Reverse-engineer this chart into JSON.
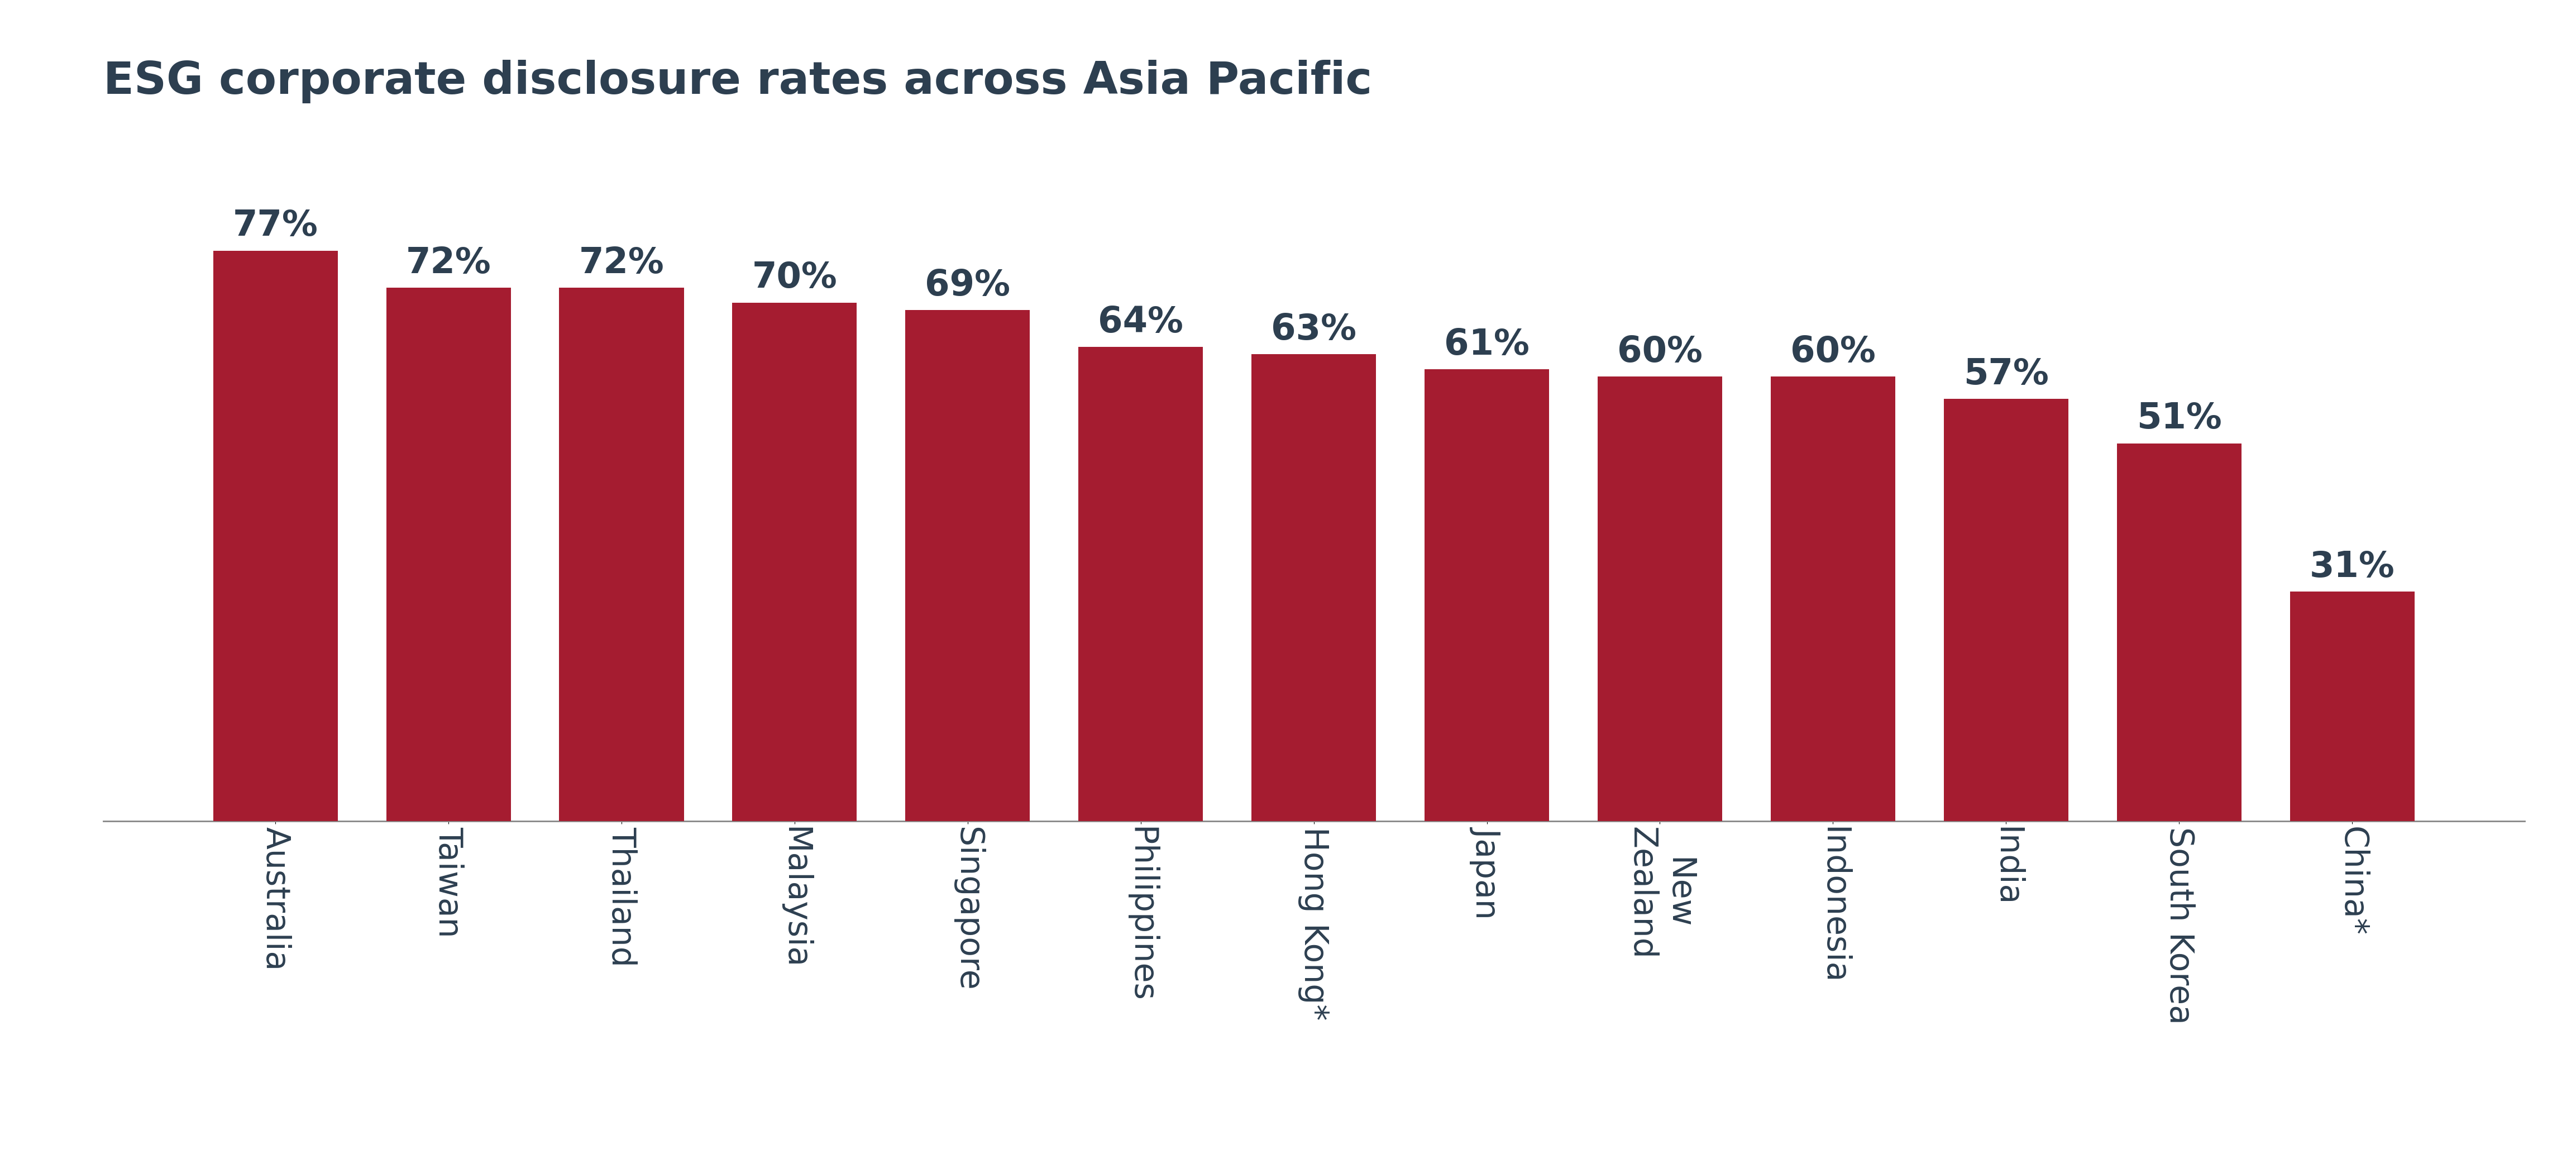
{
  "title": "ESG corporate disclosure rates across Asia Pacific",
  "categories": [
    "Australia",
    "Taiwan",
    "Thailand",
    "Malaysia",
    "Singapore",
    "Philippines",
    "Hong Kong*",
    "Japan",
    "New\nZealand",
    "Indonesia",
    "India",
    "South Korea",
    "China*"
  ],
  "values": [
    77,
    72,
    72,
    70,
    69,
    64,
    63,
    61,
    60,
    60,
    57,
    51,
    31
  ],
  "labels": [
    "77%",
    "72%",
    "72%",
    "70%",
    "69%",
    "64%",
    "63%",
    "61%",
    "60%",
    "60%",
    "57%",
    "51%",
    "31%"
  ],
  "bar_color": "#A51C30",
  "title_color": "#2D3F50",
  "label_color": "#2D3F50",
  "tick_color": "#2D3F50",
  "background_color": "#FFFFFF",
  "title_fontsize": 58,
  "label_fontsize": 46,
  "tick_fontsize": 42,
  "ylim": [
    0,
    95
  ],
  "bar_width": 0.72
}
